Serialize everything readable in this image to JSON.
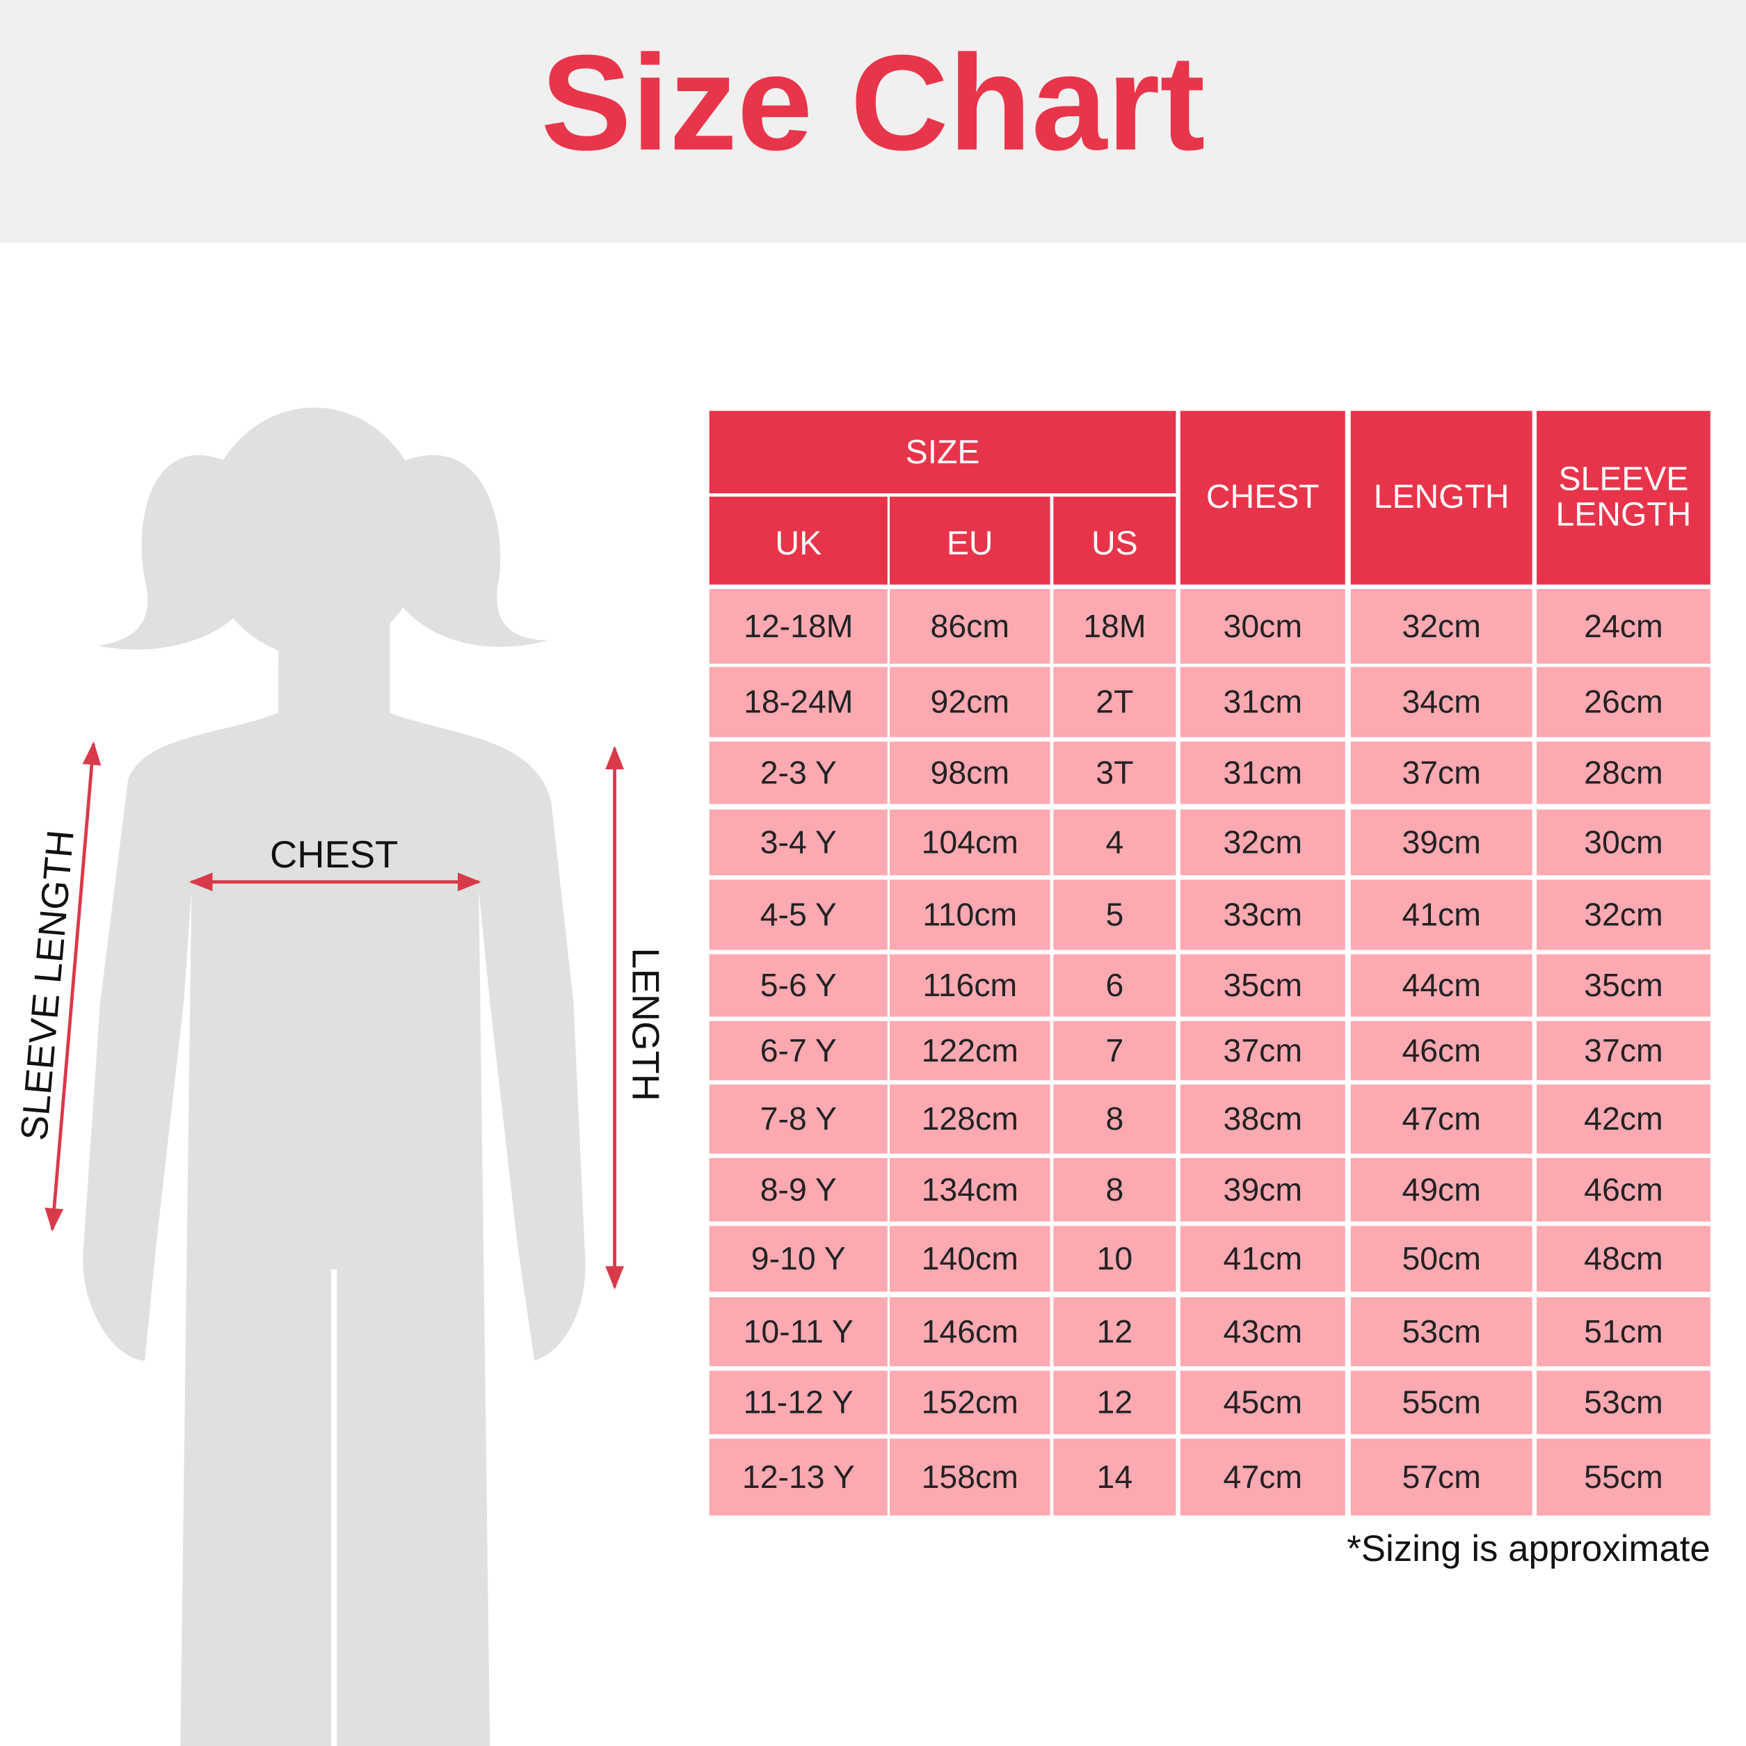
{
  "header": {
    "title": "Size Chart"
  },
  "figure": {
    "labels": {
      "chest": "CHEST",
      "sleeve_length": "SLEEVE LENGTH",
      "length": "LENGTH"
    }
  },
  "table": {
    "group_header": "SIZE",
    "size_columns": [
      "UK",
      "EU",
      "US"
    ],
    "measure_columns": [
      "CHEST",
      "LENGTH",
      "SLEEVE LENGTH"
    ],
    "rows": [
      [
        "12-18M",
        "86cm",
        "18M",
        "30cm",
        "32cm",
        "24cm"
      ],
      [
        "18-24M",
        "92cm",
        "2T",
        "31cm",
        "34cm",
        "26cm"
      ],
      [
        "2-3 Y",
        "98cm",
        "3T",
        "31cm",
        "37cm",
        "28cm"
      ],
      [
        "3-4 Y",
        "104cm",
        "4",
        "32cm",
        "39cm",
        "30cm"
      ],
      [
        "4-5 Y",
        "110cm",
        "5",
        "33cm",
        "41cm",
        "32cm"
      ],
      [
        "5-6 Y",
        "116cm",
        "6",
        "35cm",
        "44cm",
        "35cm"
      ],
      [
        "6-7 Y",
        "122cm",
        "7",
        "37cm",
        "46cm",
        "37cm"
      ],
      [
        "7-8 Y",
        "128cm",
        "8",
        "38cm",
        "47cm",
        "42cm"
      ],
      [
        "8-9 Y",
        "134cm",
        "8",
        "39cm",
        "49cm",
        "46cm"
      ],
      [
        "9-10 Y",
        "140cm",
        "10",
        "41cm",
        "50cm",
        "48cm"
      ],
      [
        "10-11 Y",
        "146cm",
        "12",
        "43cm",
        "53cm",
        "51cm"
      ],
      [
        "11-12 Y",
        "152cm",
        "12",
        "45cm",
        "55cm",
        "53cm"
      ],
      [
        "12-13 Y",
        "158cm",
        "14",
        "47cm",
        "57cm",
        "55cm"
      ]
    ],
    "footnote": "*Sizing is approximate"
  }
}
